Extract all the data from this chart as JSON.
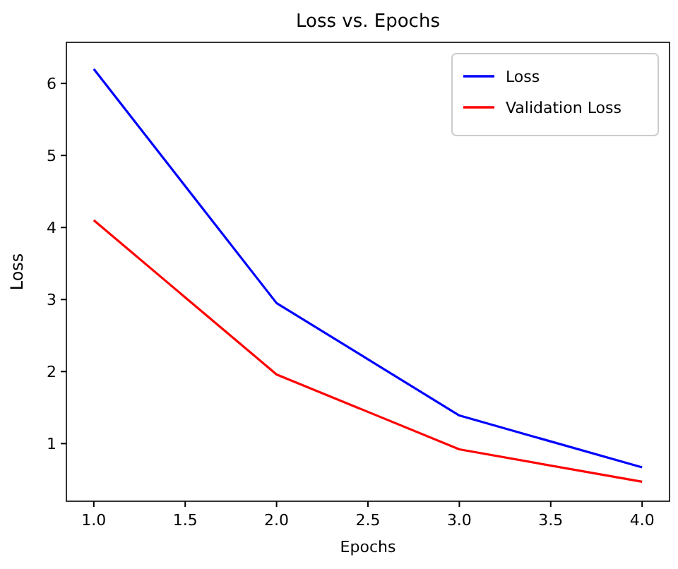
{
  "chart_data": {
    "type": "line",
    "title": "Loss vs. Epochs",
    "xlabel": "Epochs",
    "ylabel": "Loss",
    "x": [
      1,
      2,
      3,
      4
    ],
    "series": [
      {
        "name": "Loss",
        "color": "#0000ff",
        "values": [
          6.2,
          2.95,
          1.39,
          0.67
        ]
      },
      {
        "name": "Validation Loss",
        "color": "#ff0000",
        "values": [
          4.1,
          1.96,
          0.92,
          0.47
        ]
      }
    ],
    "xlim": [
      0.85,
      4.15
    ],
    "xticks": [
      {
        "value": 1,
        "label": "1.0"
      },
      {
        "value": 1.5,
        "label": "1.5"
      },
      {
        "value": 2,
        "label": "2.0"
      },
      {
        "value": 2.5,
        "label": "2.5"
      },
      {
        "value": 3,
        "label": "3.0"
      },
      {
        "value": 3.5,
        "label": "3.5"
      },
      {
        "value": 4,
        "label": "4.0"
      }
    ],
    "ylim": [
      0.2,
      6.57
    ],
    "yticks": [
      1,
      2,
      3,
      4,
      5,
      6
    ],
    "legend": "top right",
    "grid": false,
    "marker": "none",
    "line_style": "solid"
  }
}
